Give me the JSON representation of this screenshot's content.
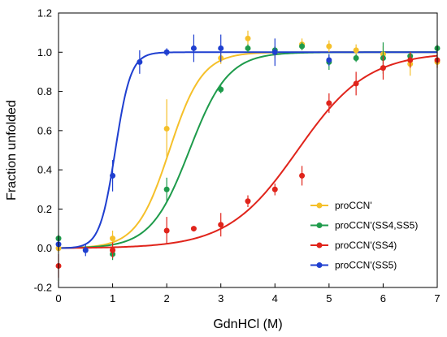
{
  "chart_data": {
    "type": "scatter",
    "xlabel": "GdnHCl (M)",
    "ylabel": "Fraction unfolded",
    "xlim": [
      0,
      7
    ],
    "ylim": [
      -0.2,
      1.2
    ],
    "xticks": [
      0,
      1,
      2,
      3,
      4,
      5,
      6,
      7
    ],
    "xtick_labels": [
      "0",
      "1",
      "2",
      "3",
      "4",
      "5",
      "6",
      "7"
    ],
    "yticks": [
      -0.2,
      0.0,
      0.2,
      0.4,
      0.6,
      0.8,
      1.0,
      1.2
    ],
    "ytick_labels": [
      "-0.2",
      "0.0",
      "0.2",
      "0.4",
      "0.6",
      "0.8",
      "1.0",
      "1.2"
    ],
    "grid": false,
    "legend_position": "bottom-right",
    "series": [
      {
        "name": "proCCN'",
        "color": "#F5C02A",
        "fit_midpoint": 2.05,
        "fit_slope": 3.3,
        "x": [
          0,
          1,
          2,
          3,
          3.5,
          4,
          4.5,
          5,
          5.5,
          6,
          6.5,
          7
        ],
        "y": [
          0.0,
          0.05,
          0.61,
          0.97,
          1.07,
          1.0,
          1.04,
          1.03,
          1.01,
          0.99,
          0.94,
          0.95
        ],
        "err": [
          0.02,
          0.04,
          0.15,
          0.03,
          0.04,
          0.03,
          0.03,
          0.03,
          0.03,
          0.04,
          0.06,
          0.03
        ]
      },
      {
        "name": "proCCN'(SS4,SS5)",
        "color": "#1E9B4B",
        "fit_midpoint": 2.42,
        "fit_slope": 2.8,
        "x": [
          0,
          1,
          2,
          3,
          3.5,
          4,
          4.5,
          5,
          5.5,
          6,
          6.5,
          7
        ],
        "y": [
          0.05,
          -0.03,
          0.3,
          0.81,
          1.02,
          1.01,
          1.03,
          0.95,
          0.97,
          0.97,
          0.98,
          1.02
        ],
        "err": [
          0.02,
          0.03,
          0.06,
          0.02,
          0.02,
          0.02,
          0.02,
          0.04,
          0.02,
          0.08,
          0.02,
          0.02
        ]
      },
      {
        "name": "proCCN'(SS4)",
        "color": "#E0241B",
        "fit_midpoint": 4.42,
        "fit_slope": 1.55,
        "x": [
          0,
          1,
          2,
          2.5,
          3,
          3.5,
          4,
          4.5,
          5,
          5.5,
          6,
          6.5,
          7
        ],
        "y": [
          -0.09,
          -0.01,
          0.09,
          0.1,
          0.12,
          0.24,
          0.3,
          0.37,
          0.74,
          0.84,
          0.92,
          0.96,
          0.96
        ],
        "err": [
          0.06,
          0.04,
          0.07,
          0.0,
          0.06,
          0.03,
          0.03,
          0.05,
          0.05,
          0.06,
          0.06,
          0.04,
          0.04
        ]
      },
      {
        "name": "proCCN'(SS5)",
        "color": "#1F3FD0",
        "fit_midpoint": 1.05,
        "fit_slope": 7.0,
        "x": [
          0,
          0.5,
          1,
          1.5,
          2,
          2.5,
          3,
          4,
          5
        ],
        "y": [
          0.02,
          -0.01,
          0.37,
          0.95,
          1.0,
          1.02,
          1.02,
          1.0,
          0.96
        ],
        "err": [
          0.03,
          0.03,
          0.08,
          0.06,
          0.02,
          0.07,
          0.07,
          0.07,
          0.03
        ]
      }
    ]
  }
}
